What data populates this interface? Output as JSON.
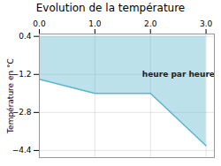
{
  "chart_data": {
    "type": "line",
    "title": "Evolution de la température",
    "ylabel": "Température en °C",
    "x": [
      0,
      1,
      2,
      3
    ],
    "values": [
      -1.4,
      -2.0,
      -2.0,
      -4.2
    ],
    "area_top": 0.4,
    "color": "#5ab4cc",
    "xlim": [
      0,
      3.15
    ],
    "xticks": [
      0,
      1,
      2,
      3
    ],
    "ylim": [
      -4.7,
      0.5
    ],
    "yticks": [
      0.4,
      -1.2,
      -2.8,
      -4.4
    ],
    "grid": true,
    "annotations": [
      {
        "text": "heure par heure",
        "x": 1.85,
        "y": -1.05
      }
    ]
  }
}
